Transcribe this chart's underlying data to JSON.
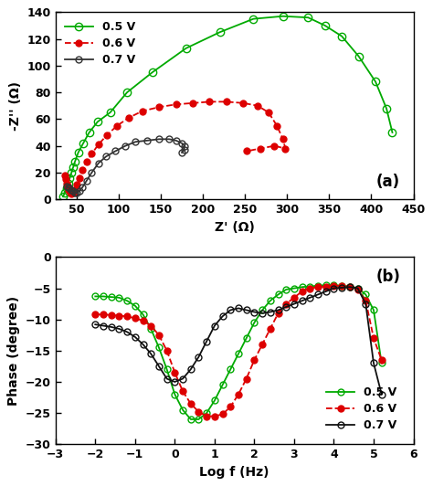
{
  "nyquist": {
    "title": "(a)",
    "xlabel": "Z' (Ω)",
    "ylabel": "-Z'' (Ω)",
    "xlim": [
      25,
      450
    ],
    "ylim": [
      0,
      140
    ],
    "xticks": [
      50,
      100,
      150,
      200,
      250,
      300,
      350,
      400,
      450
    ],
    "yticks": [
      0,
      20,
      40,
      60,
      80,
      100,
      120,
      140
    ],
    "series": [
      {
        "label": "0.5 V",
        "color": "#00aa00",
        "marker": "o",
        "markerfacecolor": "none",
        "linestyle": "-",
        "linewidth": 1.3,
        "markersize": 6,
        "x": [
          34,
          36,
          38,
          40,
          42,
          44,
          46,
          48,
          52,
          58,
          65,
          75,
          90,
          110,
          140,
          180,
          220,
          260,
          295,
          325,
          345,
          365,
          385,
          405,
          418,
          425
        ],
        "y": [
          2,
          5,
          8,
          12,
          16,
          20,
          24,
          28,
          35,
          42,
          50,
          58,
          65,
          80,
          95,
          113,
          125,
          135,
          137,
          136,
          130,
          122,
          107,
          88,
          68,
          50
        ]
      },
      {
        "label": "0.6 V",
        "color": "#dd0000",
        "marker": "o",
        "markerfacecolor": "#dd0000",
        "linestyle": "--",
        "linewidth": 1.3,
        "markersize": 5,
        "x": [
          36,
          37,
          38,
          39,
          40,
          41,
          42,
          43,
          44,
          46,
          48,
          50,
          53,
          57,
          62,
          68,
          76,
          86,
          98,
          112,
          128,
          148,
          168,
          188,
          208,
          228,
          248,
          265,
          278,
          288,
          295,
          298,
          285,
          268,
          252
        ],
        "y": [
          18,
          15,
          12,
          10,
          8,
          7,
          6,
          5,
          4,
          5,
          7,
          11,
          16,
          22,
          28,
          34,
          41,
          48,
          55,
          61,
          66,
          69,
          71,
          72,
          73,
          73,
          72,
          70,
          65,
          55,
          45,
          38,
          40,
          38,
          36
        ]
      },
      {
        "label": "0.7 V",
        "color": "#333333",
        "marker": "o",
        "markerfacecolor": "none",
        "linestyle": "-",
        "linewidth": 1.3,
        "markersize": 5,
        "x": [
          38,
          40,
          42,
          44,
          46,
          48,
          50,
          53,
          57,
          62,
          68,
          76,
          85,
          96,
          108,
          120,
          134,
          148,
          160,
          168,
          175,
          178,
          178,
          175
        ],
        "y": [
          10,
          9,
          8,
          7,
          6,
          5,
          5,
          6,
          9,
          14,
          20,
          27,
          32,
          36,
          40,
          43,
          44,
          45,
          45,
          44,
          42,
          40,
          37,
          35
        ]
      }
    ]
  },
  "bode": {
    "title": "(b)",
    "xlabel": "Log f (Hz)",
    "ylabel": "Phase (degree)",
    "xlim": [
      -3,
      6
    ],
    "ylim": [
      -30,
      0
    ],
    "xticks": [
      -3,
      -2,
      -1,
      0,
      1,
      2,
      3,
      4,
      5,
      6
    ],
    "yticks": [
      0,
      -5,
      -10,
      -15,
      -20,
      -25,
      -30
    ],
    "series": [
      {
        "label": "0.5 V",
        "color": "#00aa00",
        "marker": "o",
        "markerfacecolor": "none",
        "linestyle": "-",
        "linewidth": 1.3,
        "markersize": 5,
        "x": [
          -2.0,
          -1.8,
          -1.6,
          -1.4,
          -1.2,
          -1.0,
          -0.8,
          -0.6,
          -0.4,
          -0.2,
          0.0,
          0.2,
          0.4,
          0.6,
          0.8,
          1.0,
          1.2,
          1.4,
          1.6,
          1.8,
          2.0,
          2.2,
          2.4,
          2.6,
          2.8,
          3.0,
          3.2,
          3.4,
          3.6,
          3.8,
          4.0,
          4.2,
          4.4,
          4.6,
          4.8,
          5.0,
          5.2
        ],
        "y": [
          -6.3,
          -6.3,
          -6.4,
          -6.5,
          -7.0,
          -7.8,
          -9.2,
          -11.5,
          -14.5,
          -18.0,
          -22.0,
          -24.5,
          -26.0,
          -26.0,
          -25.0,
          -23.0,
          -20.5,
          -18.0,
          -15.5,
          -13.0,
          -10.5,
          -8.5,
          -7.0,
          -6.0,
          -5.2,
          -5.0,
          -4.8,
          -4.7,
          -4.6,
          -4.5,
          -4.5,
          -4.6,
          -4.7,
          -5.0,
          -6.0,
          -8.5,
          -17.0
        ]
      },
      {
        "label": "0.6 V",
        "color": "#dd0000",
        "marker": "o",
        "markerfacecolor": "#dd0000",
        "linestyle": "--",
        "linewidth": 1.3,
        "markersize": 5,
        "x": [
          -2.0,
          -1.8,
          -1.6,
          -1.4,
          -1.2,
          -1.0,
          -0.8,
          -0.6,
          -0.4,
          -0.2,
          0.0,
          0.2,
          0.4,
          0.6,
          0.8,
          1.0,
          1.2,
          1.4,
          1.6,
          1.8,
          2.0,
          2.2,
          2.4,
          2.6,
          2.8,
          3.0,
          3.2,
          3.4,
          3.6,
          3.8,
          4.0,
          4.2,
          4.4,
          4.6,
          4.8,
          5.0,
          5.2
        ],
        "y": [
          -9.2,
          -9.2,
          -9.3,
          -9.4,
          -9.5,
          -9.8,
          -10.2,
          -11.0,
          -12.5,
          -15.0,
          -18.5,
          -21.5,
          -23.5,
          -24.8,
          -25.5,
          -25.5,
          -25.2,
          -24.0,
          -22.0,
          -19.5,
          -16.5,
          -14.0,
          -11.5,
          -9.0,
          -7.5,
          -6.5,
          -5.5,
          -5.0,
          -4.8,
          -4.7,
          -4.6,
          -4.6,
          -4.8,
          -5.2,
          -7.0,
          -13.0,
          -16.5
        ]
      },
      {
        "label": "0.7 V",
        "color": "#111111",
        "marker": "o",
        "markerfacecolor": "none",
        "linestyle": "-",
        "linewidth": 1.3,
        "markersize": 5,
        "x": [
          -2.0,
          -1.8,
          -1.6,
          -1.4,
          -1.2,
          -1.0,
          -0.8,
          -0.6,
          -0.4,
          -0.2,
          0.0,
          0.2,
          0.4,
          0.6,
          0.8,
          1.0,
          1.2,
          1.4,
          1.6,
          1.8,
          2.0,
          2.2,
          2.4,
          2.6,
          2.8,
          3.0,
          3.2,
          3.4,
          3.6,
          3.8,
          4.0,
          4.2,
          4.4,
          4.6,
          4.8,
          5.0,
          5.2
        ],
        "y": [
          -10.8,
          -11.0,
          -11.2,
          -11.5,
          -12.0,
          -12.8,
          -14.0,
          -15.5,
          -17.5,
          -19.5,
          -20.0,
          -19.5,
          -18.0,
          -16.0,
          -13.5,
          -11.0,
          -9.5,
          -8.5,
          -8.2,
          -8.5,
          -8.8,
          -9.0,
          -8.8,
          -8.5,
          -8.0,
          -7.5,
          -7.0,
          -6.5,
          -6.0,
          -5.5,
          -5.0,
          -4.9,
          -4.8,
          -5.0,
          -7.5,
          -17.0,
          -22.0
        ]
      }
    ]
  },
  "bg_color": "#ffffff"
}
